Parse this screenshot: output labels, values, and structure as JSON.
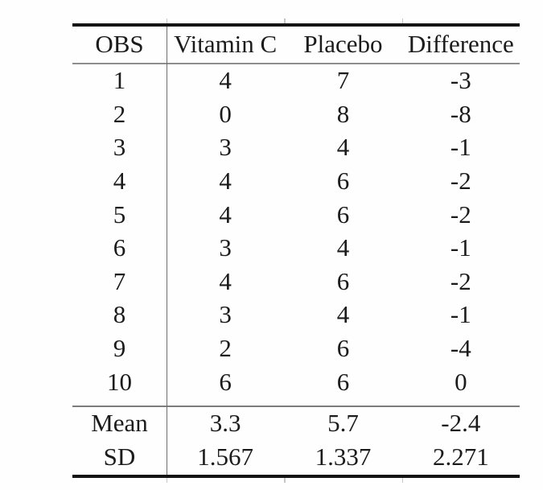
{
  "table": {
    "columns": {
      "obs": "OBS",
      "vitamin_c": "Vitamin C",
      "placebo": "Placebo",
      "difference": "Difference"
    },
    "rows": [
      {
        "obs": "1",
        "vitamin_c": "4",
        "placebo": "7",
        "difference": "-3"
      },
      {
        "obs": "2",
        "vitamin_c": "0",
        "placebo": "8",
        "difference": "-8"
      },
      {
        "obs": "3",
        "vitamin_c": "3",
        "placebo": "4",
        "difference": "-1"
      },
      {
        "obs": "4",
        "vitamin_c": "4",
        "placebo": "6",
        "difference": "-2"
      },
      {
        "obs": "5",
        "vitamin_c": "4",
        "placebo": "6",
        "difference": "-2"
      },
      {
        "obs": "6",
        "vitamin_c": "3",
        "placebo": "4",
        "difference": "-1"
      },
      {
        "obs": "7",
        "vitamin_c": "4",
        "placebo": "6",
        "difference": "-2"
      },
      {
        "obs": "8",
        "vitamin_c": "3",
        "placebo": "4",
        "difference": "-1"
      },
      {
        "obs": "9",
        "vitamin_c": "2",
        "placebo": "6",
        "difference": "-4"
      },
      {
        "obs": "10",
        "vitamin_c": "6",
        "placebo": "6",
        "difference": "0"
      }
    ],
    "summary": [
      {
        "label": "Mean",
        "vitamin_c": "3.3",
        "placebo": "5.7",
        "difference": "-2.4"
      },
      {
        "label": "SD",
        "vitamin_c": "1.567",
        "placebo": "1.337",
        "difference": "2.271"
      }
    ]
  },
  "colors": {
    "text": "#1b1b1b",
    "thick_rule": "#141414",
    "thin_rule": "#8e8e8e",
    "divider": "#6d6d6d",
    "background": "#fefefe"
  }
}
